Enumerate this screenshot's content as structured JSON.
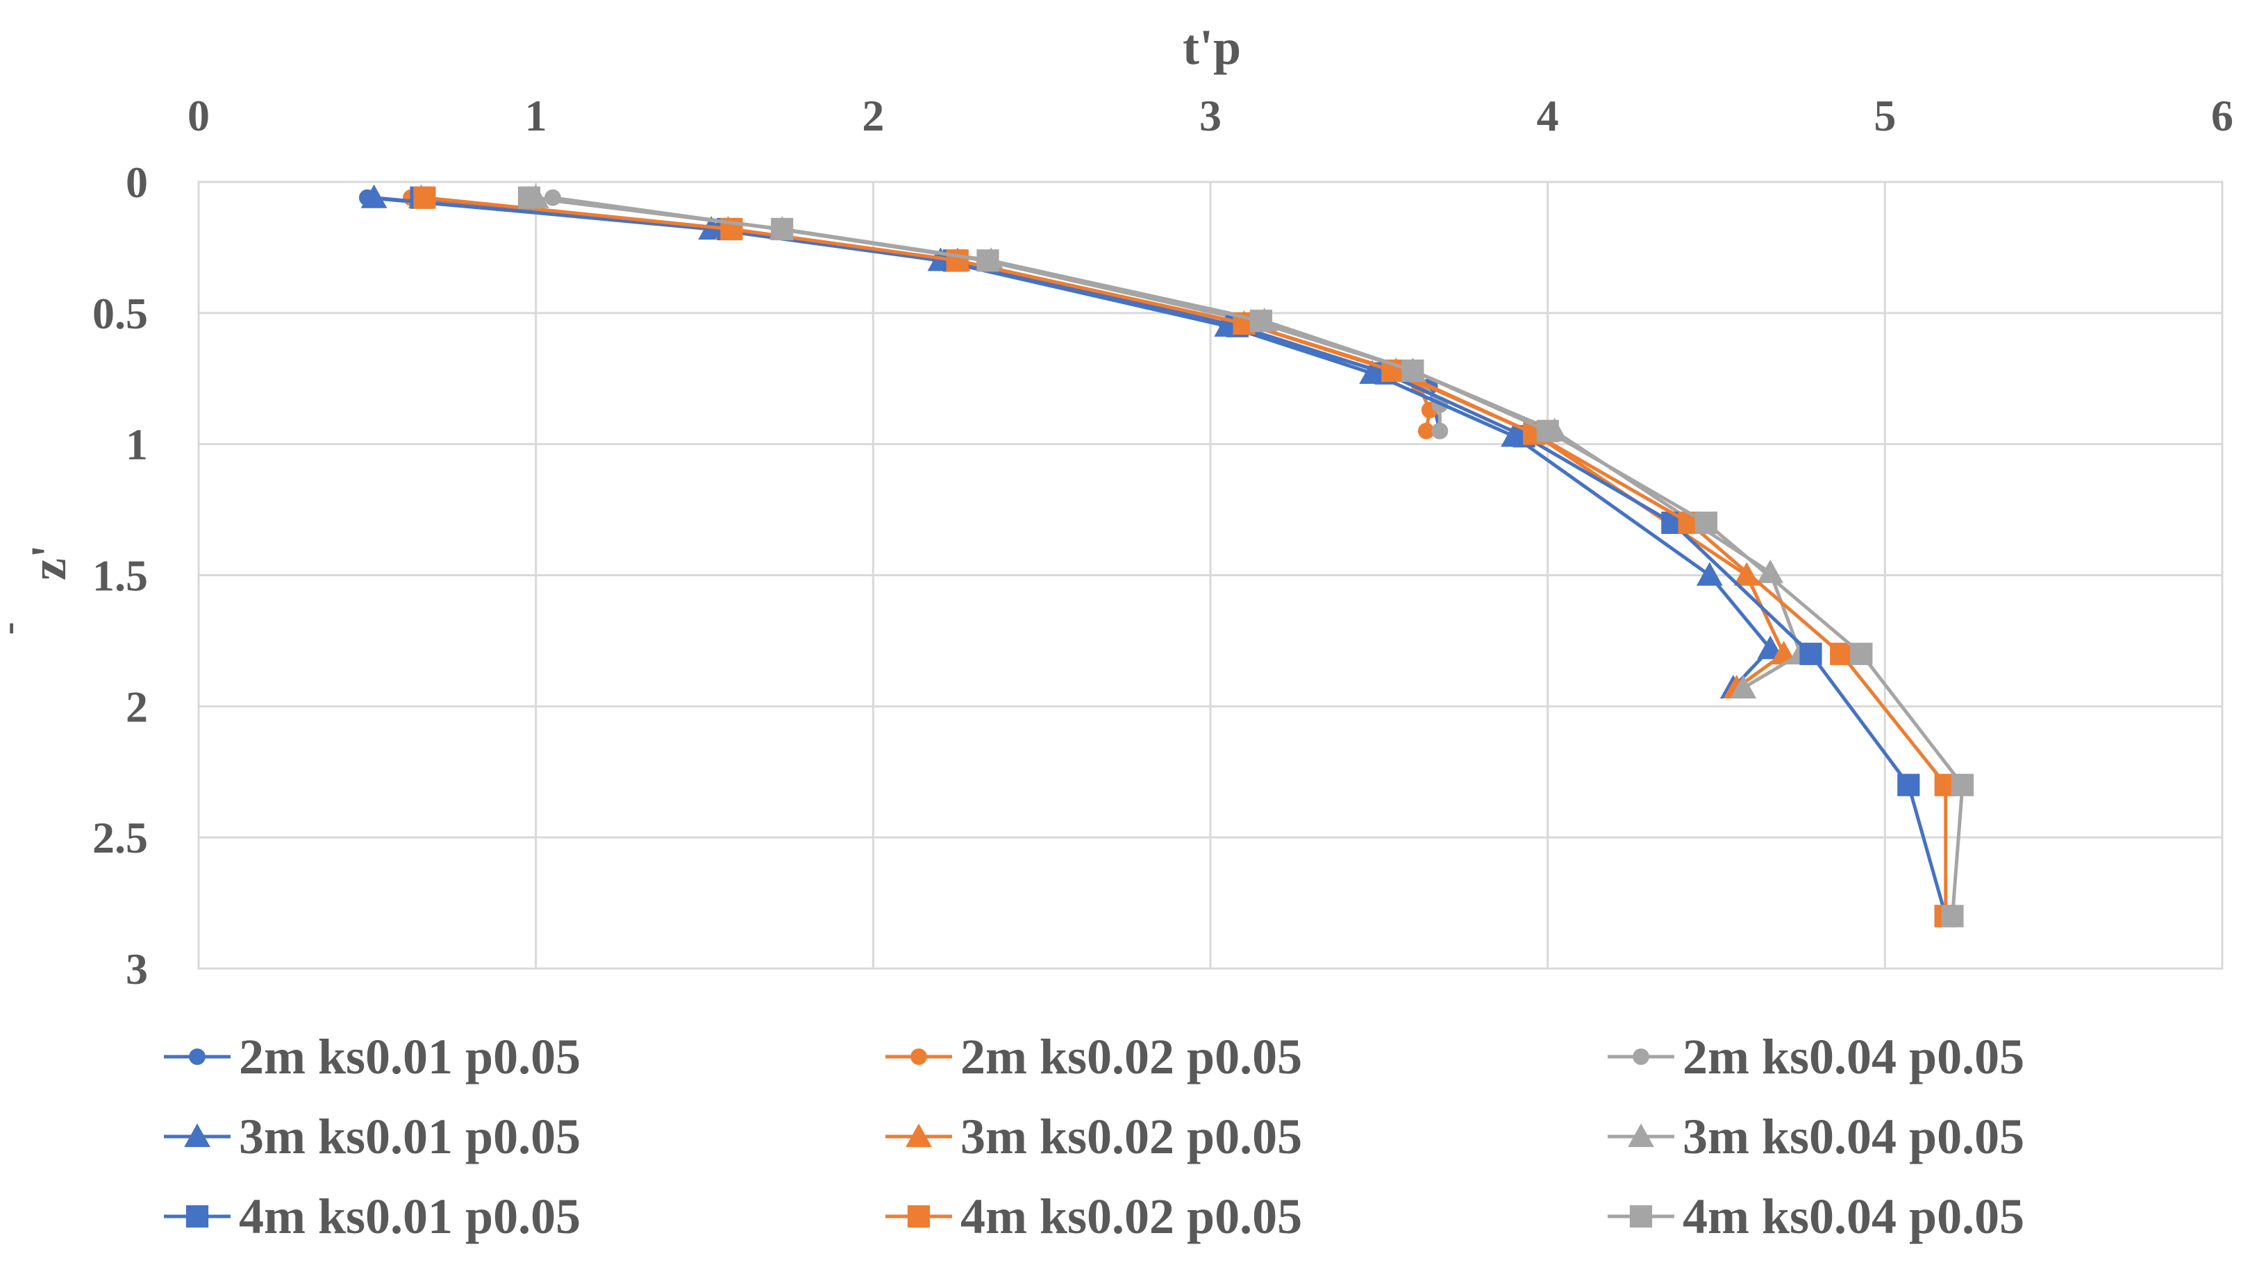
{
  "chart_data": {
    "type": "line",
    "title": "",
    "xlabel": "t'p",
    "ylabel": "z'",
    "ylabel_prefix": "-",
    "x_axis_position": "top",
    "y_inverted": true,
    "xlim": [
      0,
      6
    ],
    "ylim": [
      0,
      3
    ],
    "xticks": [
      "0",
      "1",
      "2",
      "3",
      "4",
      "5",
      "6"
    ],
    "yticks": [
      "0",
      "0.5",
      "1",
      "1.5",
      "2",
      "2.5",
      "3"
    ],
    "grid": true,
    "legend_position": "bottom",
    "series": [
      {
        "name": "2m ks0.01 p0.05",
        "color": "#4472C4",
        "marker": "circle",
        "x": [
          0.5,
          1.55,
          2.2,
          3.05,
          3.5,
          3.65,
          3.68
        ],
        "y": [
          0.06,
          0.18,
          0.3,
          0.55,
          0.72,
          0.78,
          0.95
        ]
      },
      {
        "name": "2m ks0.02 p0.05",
        "color": "#ED7D31",
        "marker": "circle",
        "x": [
          0.63,
          1.57,
          2.25,
          3.1,
          3.55,
          3.62,
          3.65,
          3.64
        ],
        "y": [
          0.06,
          0.18,
          0.3,
          0.54,
          0.72,
          0.78,
          0.87,
          0.95
        ]
      },
      {
        "name": "2m ks0.04 p0.05",
        "color": "#A5A5A5",
        "marker": "circle",
        "x": [
          1.05,
          1.72,
          2.33,
          3.15,
          3.6,
          3.68,
          3.68
        ],
        "y": [
          0.06,
          0.18,
          0.3,
          0.54,
          0.72,
          0.85,
          0.95
        ]
      },
      {
        "name": "3m ks0.01 p0.05",
        "color": "#4472C4",
        "marker": "triangle",
        "x": [
          0.52,
          1.52,
          2.2,
          3.05,
          3.48,
          3.9,
          4.48,
          4.66,
          4.55
        ],
        "y": [
          0.06,
          0.18,
          0.3,
          0.55,
          0.73,
          0.97,
          1.5,
          1.78,
          1.93
        ]
      },
      {
        "name": "3m ks0.02 p0.05",
        "color": "#ED7D31",
        "marker": "triangle",
        "x": [
          0.66,
          1.57,
          2.25,
          3.1,
          3.55,
          3.96,
          4.59,
          4.7,
          4.56
        ],
        "y": [
          0.06,
          0.18,
          0.3,
          0.54,
          0.72,
          0.96,
          1.5,
          1.8,
          1.93
        ]
      },
      {
        "name": "3m ks0.04 p0.05",
        "color": "#A5A5A5",
        "marker": "triangle",
        "x": [
          1.0,
          1.73,
          2.35,
          3.16,
          3.6,
          4.02,
          4.66,
          4.75,
          4.58
        ],
        "y": [
          0.06,
          0.18,
          0.3,
          0.53,
          0.72,
          0.95,
          1.49,
          1.8,
          1.93
        ]
      },
      {
        "name": "4m ks0.01 p0.05",
        "color": "#4472C4",
        "marker": "square",
        "x": [
          0.66,
          1.57,
          2.24,
          3.08,
          3.52,
          3.93,
          4.37,
          4.78,
          5.07,
          5.18
        ],
        "y": [
          0.06,
          0.18,
          0.3,
          0.55,
          0.73,
          0.97,
          1.3,
          1.8,
          2.3,
          2.8
        ]
      },
      {
        "name": "4m ks0.02 p0.05",
        "color": "#ED7D31",
        "marker": "square",
        "x": [
          0.67,
          1.58,
          2.25,
          3.1,
          3.54,
          3.96,
          4.42,
          4.87,
          5.18,
          5.18
        ],
        "y": [
          0.06,
          0.18,
          0.3,
          0.54,
          0.72,
          0.96,
          1.3,
          1.8,
          2.3,
          2.8
        ]
      },
      {
        "name": "4m ks0.04 p0.05",
        "color": "#A5A5A5",
        "marker": "square",
        "x": [
          0.98,
          1.73,
          2.34,
          3.15,
          3.6,
          4.0,
          4.47,
          4.93,
          5.23,
          5.2
        ],
        "y": [
          0.06,
          0.18,
          0.3,
          0.53,
          0.72,
          0.95,
          1.3,
          1.8,
          2.3,
          2.8
        ]
      }
    ]
  }
}
